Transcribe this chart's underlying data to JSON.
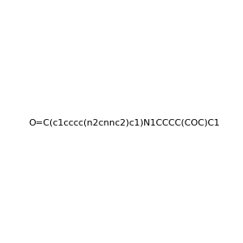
{
  "smiles": "O=C(c1cccc(n2cnnc2)c1)N1CCCC(COC)C1",
  "image_size": 300,
  "background_color": "#e8e8e8",
  "title": "",
  "atom_colors": {
    "N": [
      0,
      0,
      1
    ],
    "O": [
      1,
      0,
      0
    ],
    "C": [
      0,
      0,
      0
    ]
  }
}
